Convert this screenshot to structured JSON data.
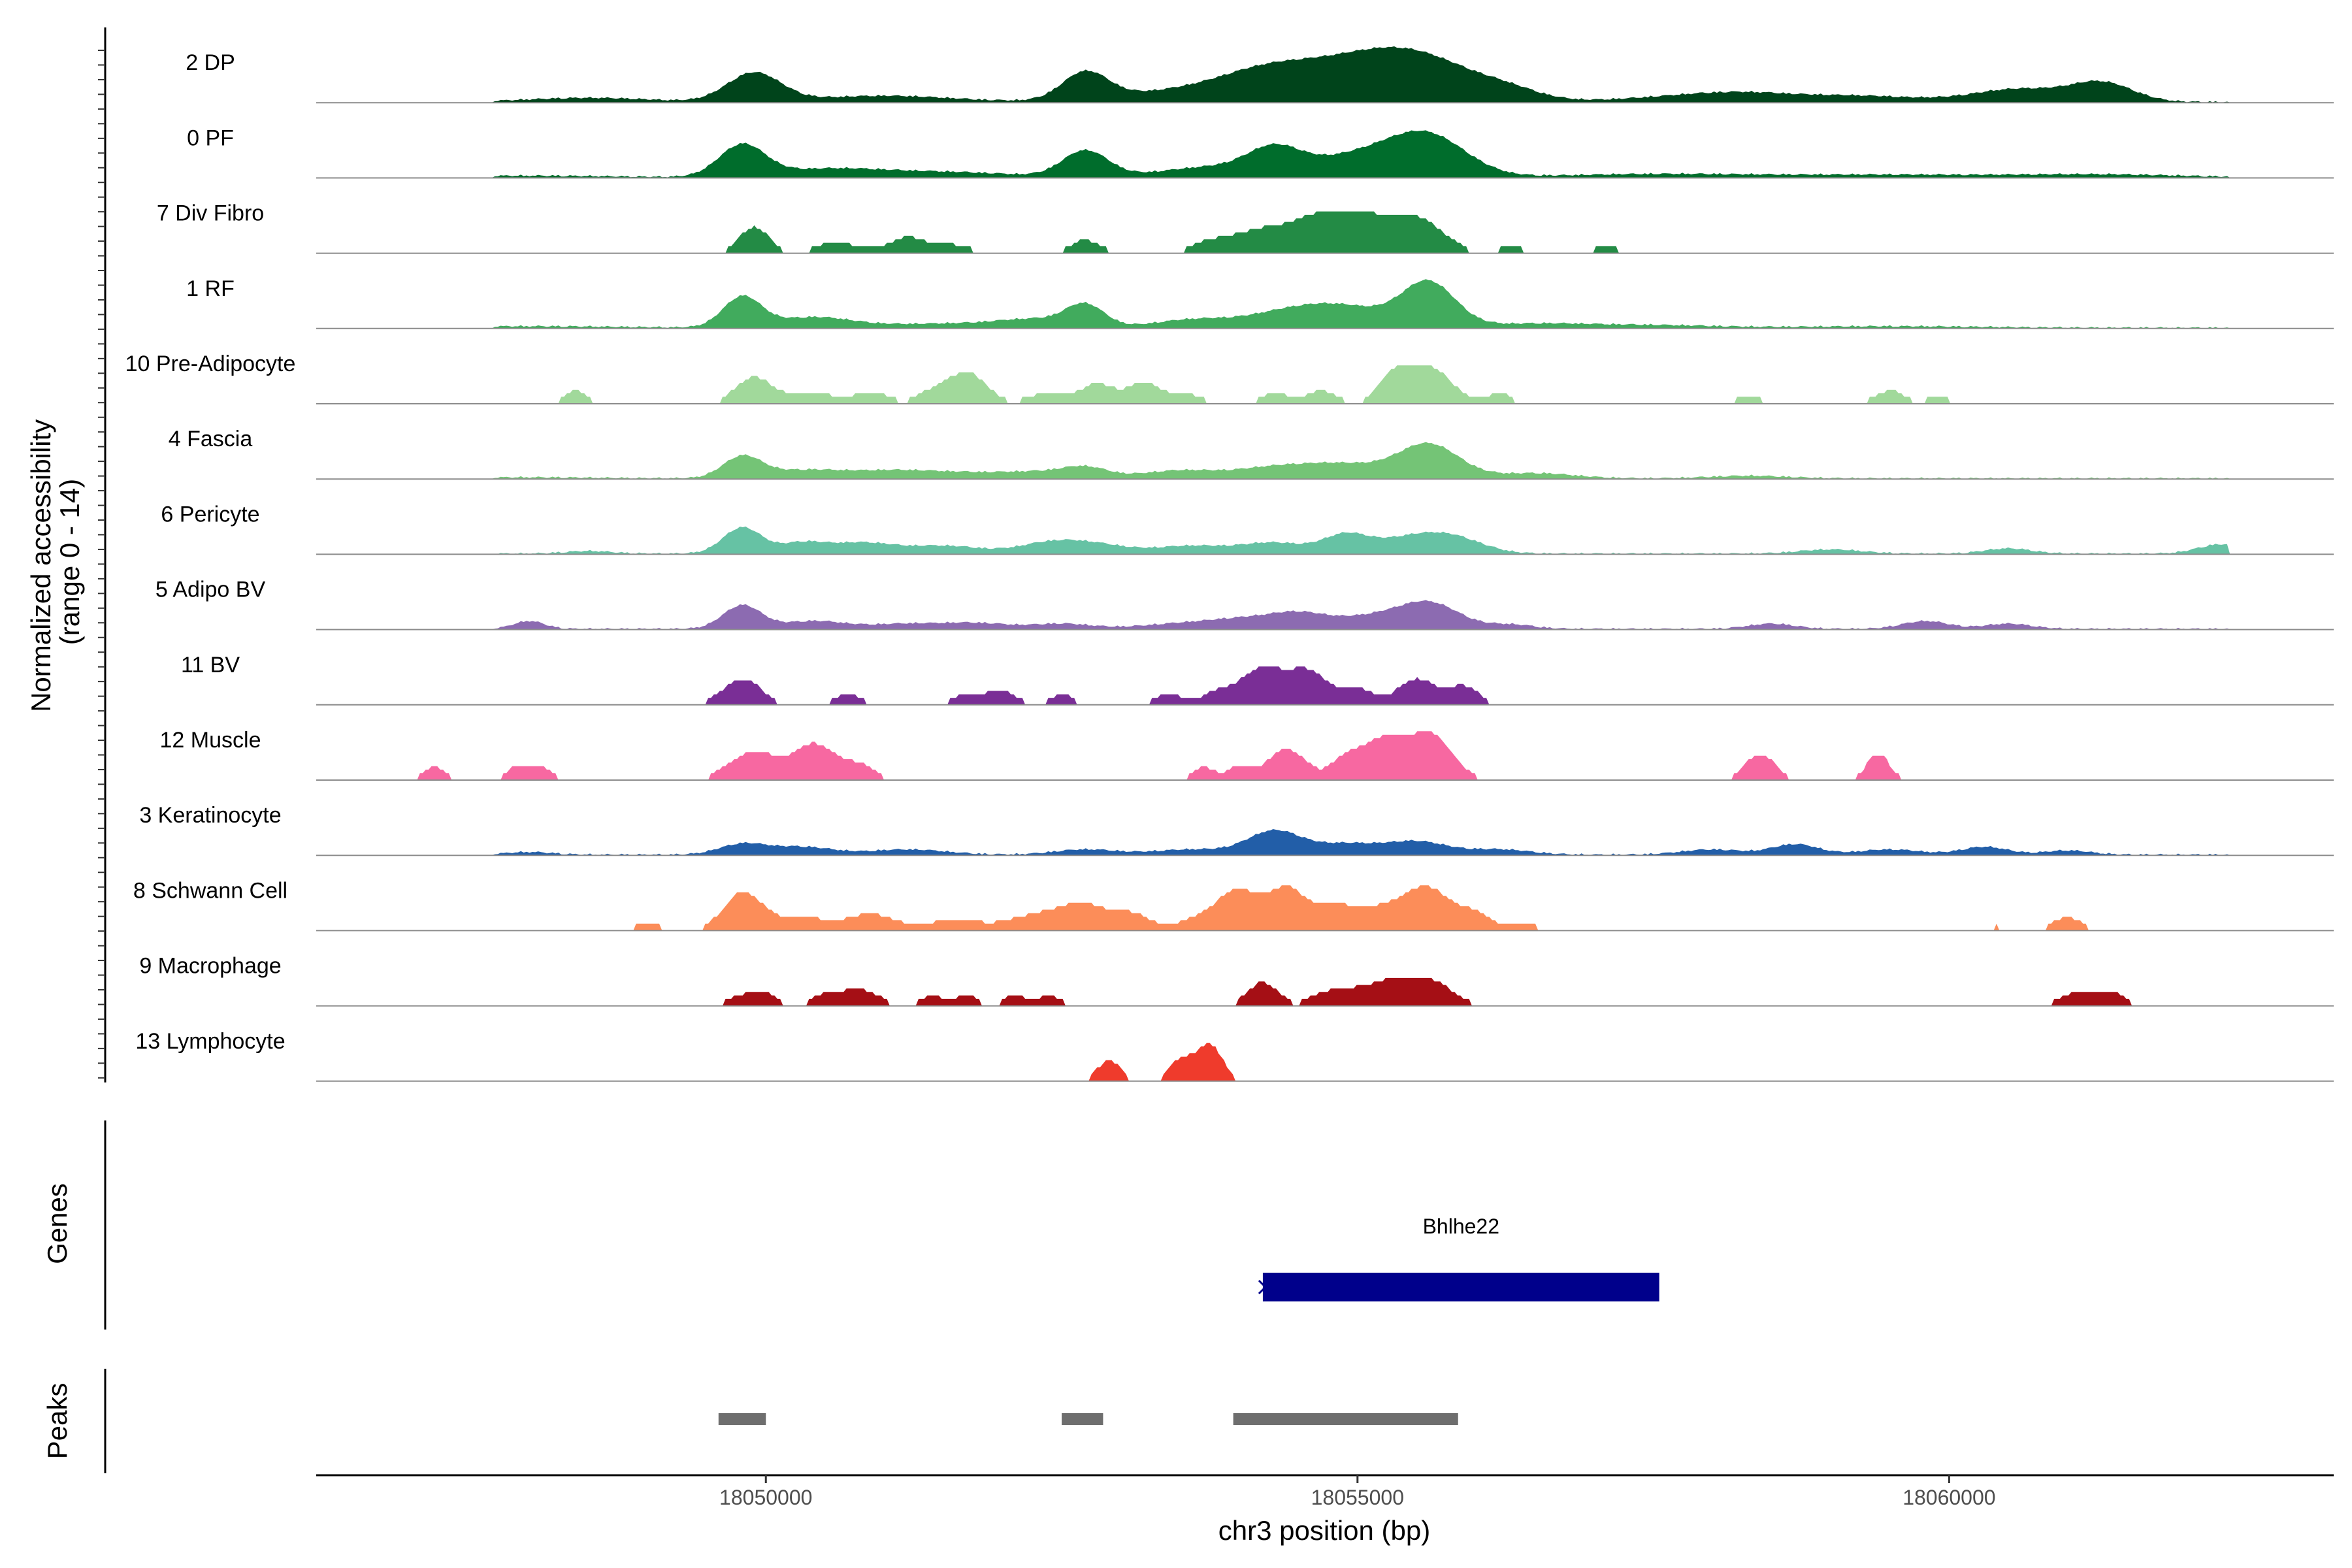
{
  "chart_data": {
    "type": "coverage",
    "title": "",
    "chromosome": "chr3",
    "xlabel": "chr3 position (bp)",
    "xlim": [
      18046200,
      18063250
    ],
    "x_ticks": [
      18050000,
      18055000,
      18060000
    ],
    "x_tick_labels": [
      "18050000",
      "18055000",
      "18060000"
    ],
    "ylabel_line1": "Normalized accessibility",
    "ylabel_line2": "(range 0 - 14)",
    "ylim": [
      0,
      14
    ],
    "genes_label": "Genes",
    "peaks_label": "Peaks",
    "tracks": [
      {
        "name": "2 DP",
        "color": "#00441b",
        "style": "smooth",
        "peaks": [
          [
            18049900,
            5.5,
            350
          ],
          [
            18052700,
            5.2,
            300
          ],
          [
            18053500,
            2.0,
            900
          ],
          [
            18054200,
            3.0,
            600
          ],
          [
            18054800,
            5.0,
            900
          ],
          [
            18055500,
            7.5,
            800
          ],
          [
            18056300,
            1.2,
            400
          ],
          [
            18057800,
            1.1,
            800
          ],
          [
            18059200,
            1.2,
            800
          ],
          [
            18060600,
            2.5,
            600
          ],
          [
            18061300,
            3.5,
            400
          ],
          [
            18048500,
            0.8,
            800
          ],
          [
            18051000,
            1.2,
            900
          ],
          [
            18058300,
            1.0,
            600
          ]
        ]
      },
      {
        "name": "0 PF",
        "color": "#006d2c",
        "style": "smooth",
        "peaks": [
          [
            18049800,
            6.0,
            300
          ],
          [
            18050500,
            1.5,
            700
          ],
          [
            18052700,
            5.0,
            300
          ],
          [
            18053800,
            2.0,
            700
          ],
          [
            18054300,
            4.5,
            350
          ],
          [
            18055000,
            4.0,
            600
          ],
          [
            18055600,
            7.5,
            500
          ],
          [
            18051500,
            1.0,
            900
          ],
          [
            18057500,
            0.6,
            1200
          ],
          [
            18059500,
            0.5,
            1500
          ],
          [
            18061300,
            0.5,
            1000
          ],
          [
            18048000,
            0.3,
            1000
          ]
        ]
      },
      {
        "name": "7 Div Fibro",
        "color": "#238b45",
        "style": "blocky",
        "pmin": 18049700,
        "pmax": 18057400,
        "peaks": [
          [
            18049900,
            5.0,
            200
          ],
          [
            18050600,
            2.0,
            300
          ],
          [
            18051200,
            3.0,
            250
          ],
          [
            18051600,
            1.5,
            250
          ],
          [
            18052700,
            2.5,
            200
          ],
          [
            18053800,
            2.5,
            300
          ],
          [
            18054200,
            4.0,
            300
          ],
          [
            18054600,
            5.5,
            300
          ],
          [
            18055000,
            7.0,
            350
          ],
          [
            18055500,
            6.5,
            350
          ],
          [
            18056300,
            1.5,
            150
          ],
          [
            18057100,
            1.5,
            150
          ]
        ]
      },
      {
        "name": "1 RF",
        "color": "#41ab5d",
        "style": "smooth",
        "peaks": [
          [
            18049800,
            5.8,
            250
          ],
          [
            18050400,
            2.0,
            500
          ],
          [
            18051500,
            0.8,
            800
          ],
          [
            18052300,
            1.5,
            500
          ],
          [
            18052700,
            4.0,
            250
          ],
          [
            18053600,
            1.5,
            500
          ],
          [
            18054500,
            3.5,
            600
          ],
          [
            18055000,
            2.5,
            500
          ],
          [
            18055600,
            8.5,
            350
          ],
          [
            18056500,
            0.8,
            700
          ],
          [
            18057500,
            0.5,
            800
          ],
          [
            18048000,
            0.3,
            1200
          ],
          [
            18059500,
            0.3,
            1200
          ]
        ]
      },
      {
        "name": "10 Pre-Adipocyte",
        "color": "#a1d99b",
        "style": "blocky",
        "pmin": 18048300,
        "pmax": 18060000,
        "peaks": [
          [
            18048400,
            2.5,
            150
          ],
          [
            18049900,
            5.0,
            250
          ],
          [
            18050400,
            2.0,
            300
          ],
          [
            18050900,
            2.0,
            250
          ],
          [
            18051400,
            2.0,
            200
          ],
          [
            18051700,
            6.0,
            250
          ],
          [
            18052400,
            2.0,
            300
          ],
          [
            18052800,
            3.5,
            200
          ],
          [
            18053200,
            4.0,
            250
          ],
          [
            18053600,
            1.5,
            200
          ],
          [
            18054300,
            2.0,
            200
          ],
          [
            18054700,
            2.5,
            200
          ],
          [
            18055300,
            4.5,
            200
          ],
          [
            18055600,
            7.0,
            300
          ],
          [
            18056200,
            2.0,
            150
          ],
          [
            18058300,
            1.5,
            200
          ],
          [
            18059500,
            2.5,
            200
          ],
          [
            18059900,
            1.5,
            150
          ]
        ]
      },
      {
        "name": "4 Fascia",
        "color": "#74c476",
        "style": "smooth",
        "peaks": [
          [
            18049800,
            4.0,
            250
          ],
          [
            18050300,
            1.5,
            500
          ],
          [
            18051100,
            1.5,
            600
          ],
          [
            18051800,
            0.8,
            500
          ],
          [
            18052300,
            1.0,
            400
          ],
          [
            18052700,
            2.0,
            300
          ],
          [
            18053500,
            1.5,
            500
          ],
          [
            18054300,
            2.0,
            500
          ],
          [
            18054900,
            2.5,
            500
          ],
          [
            18055600,
            6.5,
            400
          ],
          [
            18056500,
            1.0,
            500
          ],
          [
            18058300,
            0.5,
            500
          ],
          [
            18048000,
            0.2,
            800
          ]
        ]
      },
      {
        "name": "6 Pericyte",
        "color": "#66c2a4",
        "style": "smooth",
        "peaks": [
          [
            18049800,
            5.0,
            250
          ],
          [
            18050300,
            2.0,
            300
          ],
          [
            18050800,
            2.0,
            400
          ],
          [
            18051500,
            1.5,
            500
          ],
          [
            18052400,
            2.0,
            400
          ],
          [
            18052800,
            1.5,
            400
          ],
          [
            18053600,
            1.5,
            500
          ],
          [
            18054300,
            2.0,
            400
          ],
          [
            18054900,
            3.5,
            300
          ],
          [
            18055400,
            2.5,
            400
          ],
          [
            18055800,
            3.0,
            400
          ],
          [
            18059000,
            0.8,
            400
          ],
          [
            18060500,
            1.0,
            300
          ],
          [
            18062300,
            1.8,
            300
          ],
          [
            18048500,
            0.5,
            300
          ]
        ]
      },
      {
        "name": "5 Adipo BV",
        "color": "#8c6bb1",
        "style": "smooth",
        "peaks": [
          [
            18048000,
            1.5,
            200
          ],
          [
            18049800,
            4.5,
            250
          ],
          [
            18050400,
            1.5,
            400
          ],
          [
            18051200,
            1.0,
            500
          ],
          [
            18051800,
            1.0,
            400
          ],
          [
            18052500,
            1.0,
            400
          ],
          [
            18053500,
            1.0,
            500
          ],
          [
            18054000,
            1.5,
            400
          ],
          [
            18054500,
            3.0,
            400
          ],
          [
            18055100,
            2.0,
            400
          ],
          [
            18055600,
            5.0,
            400
          ],
          [
            18056300,
            0.8,
            300
          ],
          [
            18058500,
            1.0,
            300
          ],
          [
            18059800,
            1.5,
            300
          ],
          [
            18060500,
            1.0,
            300
          ]
        ]
      },
      {
        "name": "11 BV",
        "color": "#7a2e96",
        "style": "blocky",
        "pmin": 18049700,
        "pmax": 18056100,
        "peaks": [
          [
            18049800,
            5.0,
            250
          ],
          [
            18050700,
            2.0,
            200
          ],
          [
            18051700,
            2.0,
            200
          ],
          [
            18052000,
            2.5,
            200
          ],
          [
            18052500,
            2.0,
            150
          ],
          [
            18053400,
            2.0,
            200
          ],
          [
            18053800,
            2.0,
            200
          ],
          [
            18054200,
            7.0,
            300
          ],
          [
            18054600,
            6.0,
            250
          ],
          [
            18055000,
            3.0,
            200
          ],
          [
            18055500,
            5.0,
            250
          ],
          [
            18055900,
            3.5,
            200
          ]
        ]
      },
      {
        "name": "12 Muscle",
        "color": "#f768a1",
        "style": "blocky",
        "pmin": 18047000,
        "pmax": 18059600,
        "peaks": [
          [
            18047200,
            2.5,
            150
          ],
          [
            18047900,
            2.5,
            150
          ],
          [
            18048100,
            2.5,
            150
          ],
          [
            18049800,
            4.0,
            250
          ],
          [
            18050000,
            2.5,
            200
          ],
          [
            18050400,
            7.0,
            300
          ],
          [
            18050800,
            2.5,
            200
          ],
          [
            18053700,
            2.5,
            150
          ],
          [
            18054000,
            2.5,
            150
          ],
          [
            18054400,
            6.0,
            250
          ],
          [
            18054900,
            4.0,
            200
          ],
          [
            18055200,
            7.0,
            250
          ],
          [
            18055600,
            9.0,
            300
          ],
          [
            18058400,
            5.0,
            200
          ],
          [
            18059400,
            5.0,
            150
          ]
        ]
      },
      {
        "name": "3 Keratinocyte",
        "color": "#225ea8",
        "style": "smooth",
        "peaks": [
          [
            18049800,
            2.0,
            300
          ],
          [
            18050300,
            1.5,
            400
          ],
          [
            18051200,
            1.0,
            500
          ],
          [
            18052700,
            1.0,
            400
          ],
          [
            18053600,
            1.0,
            500
          ],
          [
            18054300,
            4.5,
            350
          ],
          [
            18054900,
            2.0,
            400
          ],
          [
            18055500,
            2.5,
            400
          ],
          [
            18056200,
            1.0,
            400
          ],
          [
            18058000,
            1.0,
            400
          ],
          [
            18058700,
            2.0,
            300
          ],
          [
            18059500,
            1.0,
            400
          ],
          [
            18060300,
            1.5,
            300
          ],
          [
            18061000,
            0.8,
            300
          ],
          [
            18048000,
            0.5,
            300
          ]
        ]
      },
      {
        "name": "8 Schwann Cell",
        "color": "#fc8d59",
        "style": "blocky",
        "pmin": 18048800,
        "pmax": 18061200,
        "peaks": [
          [
            18049000,
            1.5,
            200
          ],
          [
            18049800,
            7.0,
            250
          ],
          [
            18050300,
            2.5,
            400
          ],
          [
            18050900,
            3.0,
            300
          ],
          [
            18051600,
            2.0,
            400
          ],
          [
            18052300,
            3.0,
            350
          ],
          [
            18052700,
            4.5,
            300
          ],
          [
            18053100,
            3.0,
            250
          ],
          [
            18053700,
            2.5,
            300
          ],
          [
            18054000,
            7.0,
            250
          ],
          [
            18054400,
            8.0,
            250
          ],
          [
            18054800,
            4.5,
            250
          ],
          [
            18055200,
            4.0,
            300
          ],
          [
            18055600,
            8.0,
            300
          ],
          [
            18056000,
            3.0,
            200
          ],
          [
            18056400,
            1.5,
            200
          ],
          [
            18058000,
            1.0,
            200
          ],
          [
            18058600,
            1.0,
            150
          ],
          [
            18060400,
            1.0,
            150
          ],
          [
            18061000,
            2.5,
            200
          ]
        ]
      },
      {
        "name": "9 Macrophage",
        "color": "#a50f15",
        "style": "blocky",
        "pmin": 18049700,
        "pmax": 18061400,
        "peaks": [
          [
            18049800,
            2.0,
            200
          ],
          [
            18050000,
            2.0,
            150
          ],
          [
            18050500,
            2.0,
            200
          ],
          [
            18050800,
            3.0,
            250
          ],
          [
            18051400,
            2.0,
            150
          ],
          [
            18051700,
            2.0,
            150
          ],
          [
            18052100,
            2.0,
            150
          ],
          [
            18052400,
            2.0,
            150
          ],
          [
            18054200,
            4.5,
            200
          ],
          [
            18054700,
            2.0,
            200
          ],
          [
            18054900,
            2.0,
            200
          ],
          [
            18055100,
            2.5,
            200
          ],
          [
            18055300,
            3.0,
            200
          ],
          [
            18055600,
            5.0,
            300
          ],
          [
            18061000,
            2.0,
            150
          ],
          [
            18061200,
            2.0,
            150
          ],
          [
            18061400,
            2.5,
            150
          ]
        ]
      },
      {
        "name": "13 Lymphocyte",
        "color": "#ef3b2c",
        "style": "blocky",
        "pmin": 18052700,
        "pmax": 18053900,
        "peaks": [
          [
            18052900,
            4.0,
            150
          ],
          [
            18053500,
            4.0,
            150
          ],
          [
            18053700,
            4.0,
            150
          ],
          [
            18053800,
            4.0,
            150
          ]
        ]
      }
    ],
    "genes": [
      {
        "name": "Bhlhe22",
        "start": 18054200,
        "end": 18057550,
        "strand": "+",
        "color": "#00008b"
      }
    ],
    "peak_regions": [
      {
        "start": 18049600,
        "end": 18050000
      },
      {
        "start": 18052500,
        "end": 18052850
      },
      {
        "start": 18053950,
        "end": 18055850
      }
    ],
    "peak_color": "#6e6e6e"
  }
}
